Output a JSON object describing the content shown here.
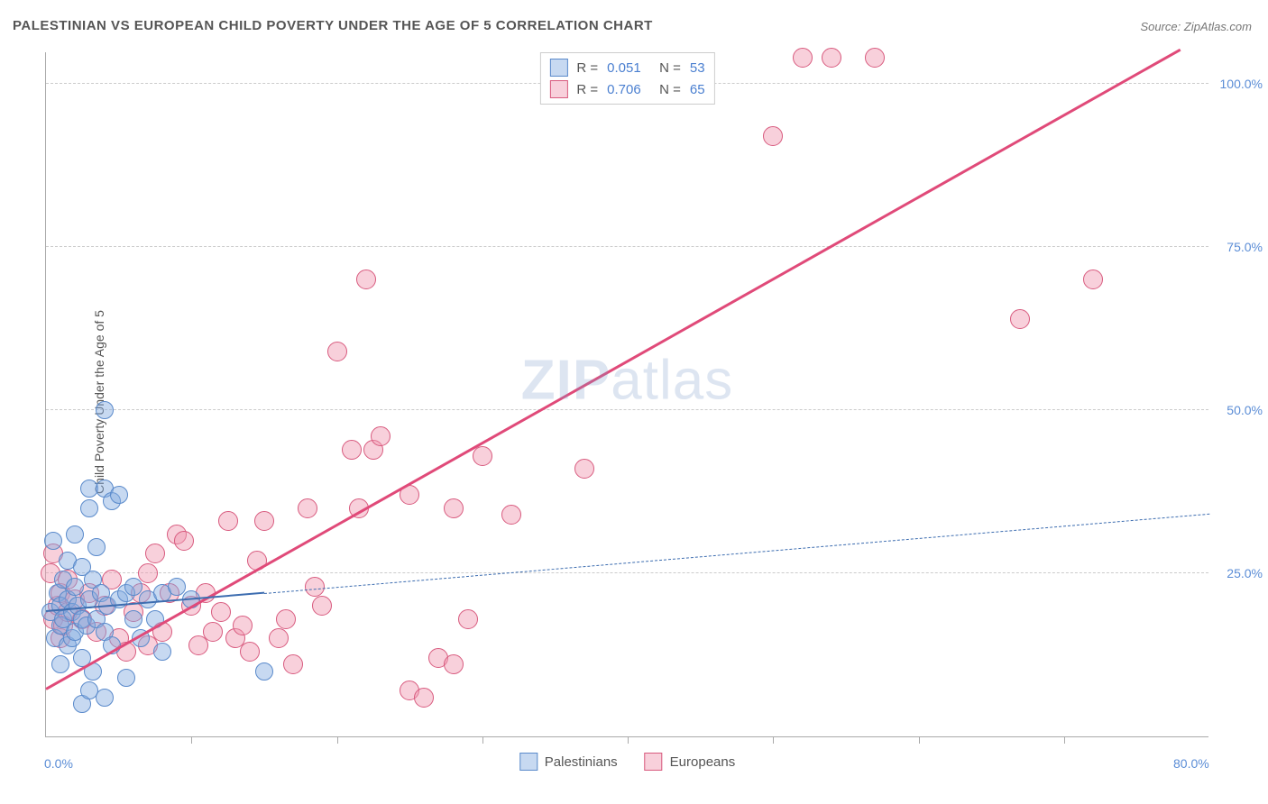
{
  "title": "PALESTINIAN VS EUROPEAN CHILD POVERTY UNDER THE AGE OF 5 CORRELATION CHART",
  "source_prefix": "Source: ",
  "source_name": "ZipAtlas.com",
  "y_axis_label": "Child Poverty Under the Age of 5",
  "watermark_bold": "ZIP",
  "watermark_rest": "atlas",
  "xlim": [
    0,
    80
  ],
  "ylim": [
    0,
    105
  ],
  "x_ticks_major": [
    0,
    80
  ],
  "x_ticks_minor": [
    10,
    20,
    30,
    40,
    50,
    60,
    70
  ],
  "y_ticks": [
    25,
    50,
    75,
    100
  ],
  "x_tick_labels": {
    "0": "0.0%",
    "80": "80.0%"
  },
  "y_tick_labels": {
    "25": "25.0%",
    "50": "50.0%",
    "75": "75.0%",
    "100": "100.0%"
  },
  "grid_color": "#cccccc",
  "axis_color": "#aaaaaa",
  "tick_label_color": "#5b8dd6",
  "background_color": "#ffffff",
  "series": {
    "palestinians": {
      "label": "Palestinians",
      "fill": "rgba(130,170,225,0.45)",
      "stroke": "#5a8acb",
      "marker_radius": 10,
      "r_value": "0.051",
      "n_value": "53",
      "trend": {
        "x1": 0,
        "y1": 19,
        "x2": 80,
        "y2": 34,
        "solid_until_x": 15,
        "color": "#3d6db0",
        "width": 2.5,
        "dash": "6,5"
      },
      "points": [
        [
          0.3,
          19
        ],
        [
          0.5,
          30
        ],
        [
          0.6,
          15
        ],
        [
          0.8,
          22
        ],
        [
          1,
          17
        ],
        [
          1,
          20
        ],
        [
          1.2,
          18
        ],
        [
          1.2,
          24
        ],
        [
          1.5,
          14
        ],
        [
          1.5,
          21
        ],
        [
          1.5,
          27
        ],
        [
          1.8,
          15
        ],
        [
          1.8,
          19
        ],
        [
          2,
          16
        ],
        [
          2,
          23
        ],
        [
          2,
          31
        ],
        [
          2.2,
          20
        ],
        [
          2.5,
          12
        ],
        [
          2.5,
          18
        ],
        [
          2.5,
          26
        ],
        [
          2.8,
          17
        ],
        [
          3,
          21
        ],
        [
          3,
          35
        ],
        [
          3,
          38
        ],
        [
          3.2,
          10
        ],
        [
          3.2,
          24
        ],
        [
          3.5,
          18
        ],
        [
          3.5,
          29
        ],
        [
          3.8,
          22
        ],
        [
          4,
          16
        ],
        [
          4,
          38
        ],
        [
          4.2,
          20
        ],
        [
          4.5,
          14
        ],
        [
          4.5,
          36
        ],
        [
          5,
          21
        ],
        [
          5,
          37
        ],
        [
          5.5,
          9
        ],
        [
          5.5,
          22
        ],
        [
          6,
          18
        ],
        [
          6,
          23
        ],
        [
          6.5,
          15
        ],
        [
          7,
          21
        ],
        [
          7.5,
          18
        ],
        [
          8,
          22
        ],
        [
          8,
          13
        ],
        [
          9,
          23
        ],
        [
          10,
          21
        ],
        [
          4,
          50
        ],
        [
          2.5,
          5
        ],
        [
          3,
          7
        ],
        [
          4,
          6
        ],
        [
          1,
          11
        ],
        [
          15,
          10
        ]
      ]
    },
    "europeans": {
      "label": "Europeans",
      "fill": "rgba(240,150,175,0.45)",
      "stroke": "#d85a7e",
      "marker_radius": 11,
      "r_value": "0.706",
      "n_value": "65",
      "trend": {
        "x1": 0,
        "y1": 7,
        "x2": 78,
        "y2": 105,
        "color": "#e04a79",
        "width": 3
      },
      "points": [
        [
          0.3,
          25
        ],
        [
          0.5,
          18
        ],
        [
          0.5,
          28
        ],
        [
          0.8,
          20
        ],
        [
          1,
          15
        ],
        [
          1,
          22
        ],
        [
          1.2,
          17
        ],
        [
          1.5,
          19
        ],
        [
          1.5,
          24
        ],
        [
          2,
          21
        ],
        [
          2.5,
          18
        ],
        [
          3,
          22
        ],
        [
          3.5,
          16
        ],
        [
          4,
          20
        ],
        [
          4.5,
          24
        ],
        [
          5,
          15
        ],
        [
          5.5,
          13
        ],
        [
          6,
          19
        ],
        [
          6.5,
          22
        ],
        [
          7,
          14
        ],
        [
          7,
          25
        ],
        [
          7.5,
          28
        ],
        [
          8,
          16
        ],
        [
          8.5,
          22
        ],
        [
          9,
          31
        ],
        [
          9.5,
          30
        ],
        [
          10,
          20
        ],
        [
          10.5,
          14
        ],
        [
          11,
          22
        ],
        [
          11.5,
          16
        ],
        [
          12,
          19
        ],
        [
          12.5,
          33
        ],
        [
          13,
          15
        ],
        [
          13.5,
          17
        ],
        [
          14,
          13
        ],
        [
          14.5,
          27
        ],
        [
          15,
          33
        ],
        [
          16,
          15
        ],
        [
          16.5,
          18
        ],
        [
          17,
          11
        ],
        [
          18,
          35
        ],
        [
          18.5,
          23
        ],
        [
          19,
          20
        ],
        [
          20,
          59
        ],
        [
          21,
          44
        ],
        [
          21.5,
          35
        ],
        [
          22,
          70
        ],
        [
          22.5,
          44
        ],
        [
          23,
          46
        ],
        [
          25,
          7
        ],
        [
          25,
          37
        ],
        [
          26,
          6
        ],
        [
          27,
          12
        ],
        [
          28,
          11
        ],
        [
          28,
          35
        ],
        [
          29,
          18
        ],
        [
          30,
          43
        ],
        [
          32,
          34
        ],
        [
          37,
          41
        ],
        [
          50,
          92
        ],
        [
          52,
          104
        ],
        [
          54,
          104
        ],
        [
          57,
          104
        ],
        [
          67,
          64
        ],
        [
          72,
          70
        ]
      ]
    }
  },
  "legend_top": {
    "r_label": "R  =",
    "n_label": "N  ="
  }
}
